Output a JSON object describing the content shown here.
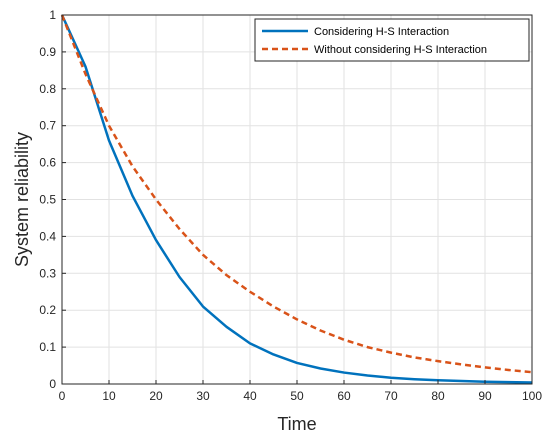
{
  "chart_data": {
    "type": "line",
    "title": "",
    "xlabel": "Time",
    "ylabel": "System reliability",
    "xlim": [
      0,
      100
    ],
    "ylim": [
      0,
      1
    ],
    "xticks": [
      0,
      10,
      20,
      30,
      40,
      50,
      60,
      70,
      80,
      90,
      100
    ],
    "yticks": [
      0,
      0.1,
      0.2,
      0.3,
      0.4,
      0.5,
      0.6,
      0.7,
      0.8,
      0.9,
      1
    ],
    "grid": true,
    "legend_position": "top-right",
    "x": [
      0,
      5,
      10,
      15,
      20,
      25,
      30,
      35,
      40,
      45,
      50,
      55,
      60,
      65,
      70,
      75,
      80,
      85,
      90,
      95,
      100
    ],
    "series": [
      {
        "name": "Considering H-S Interaction",
        "color": "#0072BD",
        "style": "solid",
        "values": [
          1.0,
          0.86,
          0.66,
          0.51,
          0.39,
          0.29,
          0.21,
          0.155,
          0.11,
          0.08,
          0.057,
          0.042,
          0.031,
          0.023,
          0.017,
          0.013,
          0.01,
          0.008,
          0.006,
          0.005,
          0.004
        ]
      },
      {
        "name": "Without considering H-S Interaction",
        "color": "#D95319",
        "style": "dashed",
        "values": [
          1.0,
          0.84,
          0.7,
          0.59,
          0.5,
          0.42,
          0.35,
          0.295,
          0.25,
          0.21,
          0.175,
          0.145,
          0.12,
          0.1,
          0.085,
          0.072,
          0.062,
          0.053,
          0.045,
          0.038,
          0.032
        ]
      }
    ]
  }
}
